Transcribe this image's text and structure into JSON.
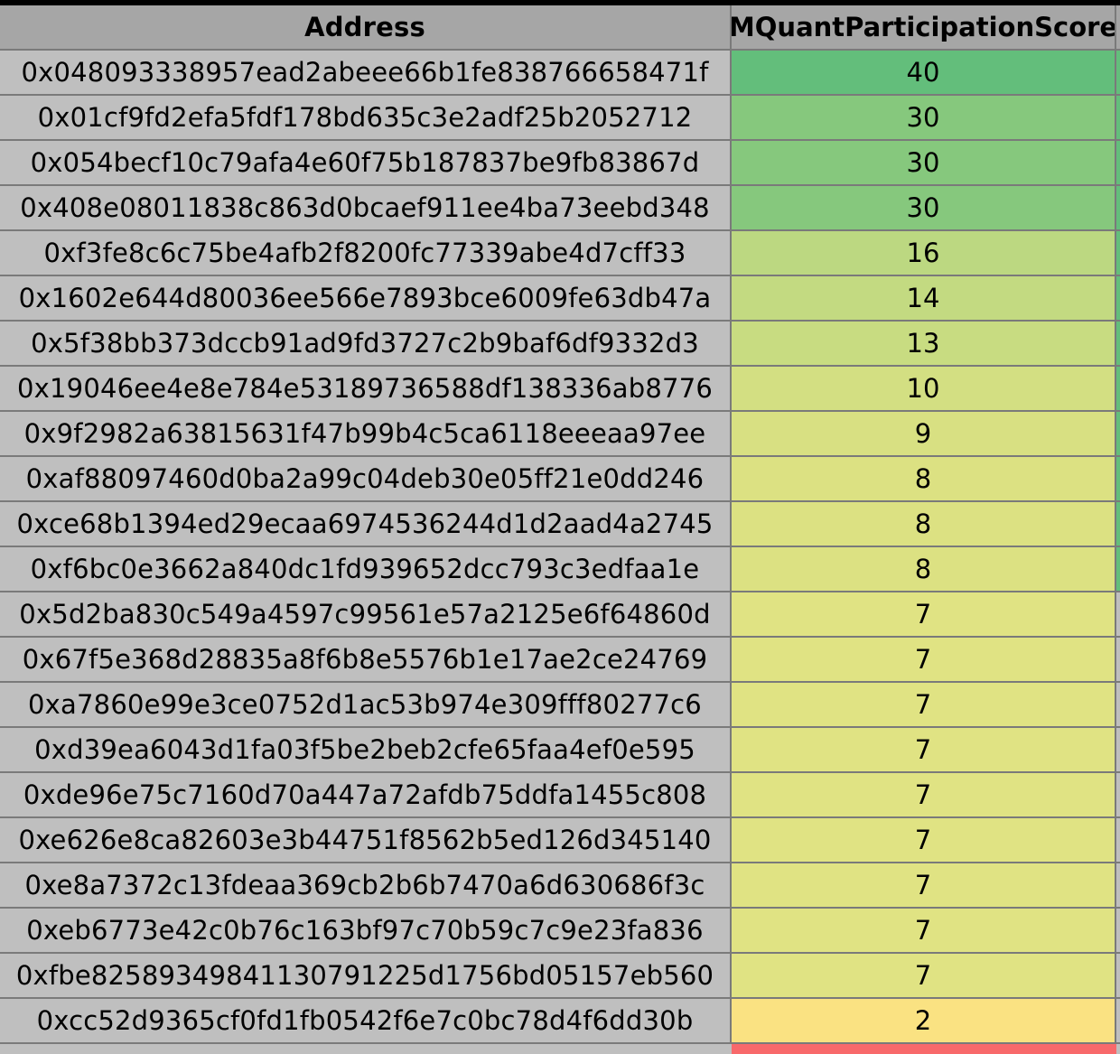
{
  "table": {
    "headers": {
      "address": "Address",
      "score": "MQuantParticipationScore"
    },
    "rows": [
      {
        "address": "0x048093338957ead2abeee66b1fe838766658471f",
        "score": "40",
        "color": "#63be7b"
      },
      {
        "address": "0x01cf9fd2efa5fdf178bd635c3e2adf25b2052712",
        "score": "30",
        "color": "#86c87d"
      },
      {
        "address": "0x054becf10c79afa4e60f75b187837be9fb83867d",
        "score": "30",
        "color": "#86c87d"
      },
      {
        "address": "0x408e08011838c863d0bcaef911ee4ba73eebd348",
        "score": "30",
        "color": "#86c87d"
      },
      {
        "address": "0xf3fe8c6c75be4afb2f8200fc77339abe4d7cff33",
        "score": "16",
        "color": "#bcd881"
      },
      {
        "address": "0x1602e644d80036ee566e7893bce6009fe63db47a",
        "score": "14",
        "color": "#c3da81"
      },
      {
        "address": "0x5f38bb373dccb91ad9fd3727c2b9baf6df9332d3",
        "score": "13",
        "color": "#c8dc81"
      },
      {
        "address": "0x19046ee4e8e784e53189736588df138336ab8776",
        "score": "10",
        "color": "#d3df82"
      },
      {
        "address": "0x9f2982a63815631f47b99b4c5ca6118eeeaa97ee",
        "score": "9",
        "color": "#d8e082"
      },
      {
        "address": "0xaf88097460d0ba2a99c04deb30e05ff21e0dd246",
        "score": "8",
        "color": "#dce182"
      },
      {
        "address": "0xce68b1394ed29ecaa6974536244d1d2aad4a2745",
        "score": "8",
        "color": "#dce182"
      },
      {
        "address": "0xf6bc0e3662a840dc1fd939652dcc793c3edfaa1e",
        "score": "8",
        "color": "#dce182"
      },
      {
        "address": "0x5d2ba830c549a4597c99561e57a2125e6f64860d",
        "score": "7",
        "color": "#e0e383"
      },
      {
        "address": "0x67f5e368d28835a8f6b8e5576b1e17ae2ce24769",
        "score": "7",
        "color": "#e0e383"
      },
      {
        "address": "0xa7860e99e3ce0752d1ac53b974e309fff80277c6",
        "score": "7",
        "color": "#e0e383"
      },
      {
        "address": "0xd39ea6043d1fa03f5be2beb2cfe65faa4ef0e595",
        "score": "7",
        "color": "#e0e383"
      },
      {
        "address": "0xde96e75c7160d70a447a72afdb75ddfa1455c808",
        "score": "7",
        "color": "#e0e383"
      },
      {
        "address": "0xe626e8ca82603e3b44751f8562b5ed126d345140",
        "score": "7",
        "color": "#e0e383"
      },
      {
        "address": "0xe8a7372c13fdeaa369cb2b6b7470a6d630686f3c",
        "score": "7",
        "color": "#e0e383"
      },
      {
        "address": "0xeb6773e42c0b76c163bf97c70b59c7c9e23fa836",
        "score": "7",
        "color": "#e0e383"
      },
      {
        "address": "0xfbe82589349841130791225d1756bd05157eb560",
        "score": "7",
        "color": "#e0e383"
      },
      {
        "address": "0xcc52d9365cf0fd1fb0542f6e7c0bc78d4f6dd30b",
        "score": "2",
        "color": "#fae282"
      }
    ],
    "partial_row_color": "#f8696b"
  }
}
